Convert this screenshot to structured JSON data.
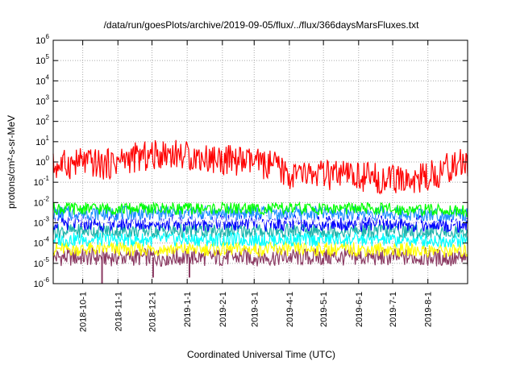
{
  "chart_data": {
    "type": "line",
    "title": "/data/run/goesPlots/archive/2019-09-05/flux/../flux/366daysMarsFluxes.txt",
    "xlabel": "Coordinated Universal Time (UTC)",
    "ylabel": "protons/cm²-s-sr-MeV",
    "y_scale": "log",
    "ylim": [
      1e-06,
      1000000.0
    ],
    "xlim": [
      "2018-09-05",
      "2019-09-05"
    ],
    "grid": true,
    "x_ticks": [
      {
        "date": "2018-10-01",
        "label": "2018-10-1"
      },
      {
        "date": "2018-11-01",
        "label": "2018-11-1"
      },
      {
        "date": "2018-12-01",
        "label": "2018-12-1"
      },
      {
        "date": "2019-01-01",
        "label": "2019-1-1"
      },
      {
        "date": "2019-02-01",
        "label": "2019-2-1"
      },
      {
        "date": "2019-03-01",
        "label": "2019-3-1"
      },
      {
        "date": "2019-04-01",
        "label": "2019-4-1"
      },
      {
        "date": "2019-05-01",
        "label": "2019-5-1"
      },
      {
        "date": "2019-06-01",
        "label": "2019-6-1"
      },
      {
        "date": "2019-07-01",
        "label": "2019-7-1"
      },
      {
        "date": "2019-08-01",
        "label": "2019-8-1"
      }
    ],
    "y_ticks": [
      {
        "value": 1e-06,
        "base": "10",
        "exp": "-6"
      },
      {
        "value": 1e-05,
        "base": "10",
        "exp": "-5"
      },
      {
        "value": 0.0001,
        "base": "10",
        "exp": "-4"
      },
      {
        "value": 0.001,
        "base": "10",
        "exp": "-3"
      },
      {
        "value": 0.01,
        "base": "10",
        "exp": "-2"
      },
      {
        "value": 0.1,
        "base": "10",
        "exp": "-1"
      },
      {
        "value": 1,
        "base": "10",
        "exp": "0"
      },
      {
        "value": 10,
        "base": "10",
        "exp": "1"
      },
      {
        "value": 100,
        "base": "10",
        "exp": "2"
      },
      {
        "value": 1000,
        "base": "10",
        "exp": "3"
      },
      {
        "value": 10000,
        "base": "10",
        "exp": "4"
      },
      {
        "value": 100000,
        "base": "10",
        "exp": "5"
      },
      {
        "value": 1000000,
        "base": "10",
        "exp": "6"
      }
    ],
    "series": [
      {
        "color": "#8b3a62",
        "x": [
          "2018-09-05",
          "2018-10-05",
          "2018-11-05",
          "2018-12-05",
          "2019-01-05",
          "2019-02-05",
          "2019-03-05",
          "2019-04-05",
          "2019-05-05",
          "2019-06-05",
          "2019-07-05",
          "2019-08-05",
          "2019-09-05"
        ],
        "y": [
          2e-05,
          2e-05,
          2e-05,
          2e-05,
          2e-05,
          2e-05,
          2e-05,
          2e-05,
          2e-05,
          2e-05,
          2e-05,
          2e-05,
          1.5e-05
        ],
        "spikes": [
          {
            "date": "2018-10-18",
            "value": 1e-06
          },
          {
            "date": "2018-12-02",
            "value": 2e-06
          },
          {
            "date": "2019-01-03",
            "value": 2e-06
          }
        ]
      },
      {
        "color": "#ffff00",
        "x": [
          "2018-09-05",
          "2018-12-05",
          "2019-03-05",
          "2019-06-05",
          "2019-09-05"
        ],
        "y": [
          5e-05,
          5e-05,
          5e-05,
          5e-05,
          4e-05
        ]
      },
      {
        "color": "#00ffff",
        "x": [
          "2018-09-05",
          "2018-12-05",
          "2019-03-05",
          "2019-06-05",
          "2019-09-05"
        ],
        "y": [
          0.00015,
          0.00015,
          0.00015,
          0.00015,
          0.00013
        ]
      },
      {
        "color": "#20b2aa",
        "x": [
          "2018-09-05",
          "2018-12-05",
          "2019-03-05",
          "2019-06-05",
          "2019-09-05"
        ],
        "y": [
          0.0004,
          0.0004,
          0.0004,
          0.0004,
          0.00035
        ]
      },
      {
        "color": "#0000ff",
        "x": [
          "2018-09-05",
          "2018-12-05",
          "2019-03-05",
          "2019-06-05",
          "2019-09-05"
        ],
        "y": [
          0.001,
          0.001,
          0.001,
          0.001,
          0.0008
        ]
      },
      {
        "color": "#ffffff",
        "x": [
          "2018-09-05",
          "2018-12-05",
          "2019-03-05",
          "2019-06-05",
          "2019-09-05"
        ],
        "y": [
          0.0015,
          0.0015,
          0.0015,
          0.0015,
          0.0013
        ]
      },
      {
        "color": "#1e90ff",
        "x": [
          "2018-09-05",
          "2018-12-05",
          "2019-03-05",
          "2019-06-05",
          "2019-09-05"
        ],
        "y": [
          0.003,
          0.003,
          0.003,
          0.003,
          0.0025
        ]
      },
      {
        "color": "#00ff00",
        "x": [
          "2018-09-05",
          "2018-12-05",
          "2019-03-05",
          "2019-06-05",
          "2019-09-05"
        ],
        "y": [
          0.005,
          0.005,
          0.005,
          0.005,
          0.004
        ]
      },
      {
        "color": "#ff0000",
        "x": [
          "2018-09-05",
          "2018-10-01",
          "2018-10-20",
          "2018-11-10",
          "2018-12-01",
          "2018-12-15",
          "2019-01-01",
          "2019-01-20",
          "2019-02-10",
          "2019-03-01",
          "2019-03-20",
          "2019-04-01",
          "2019-04-20",
          "2019-05-10",
          "2019-06-01",
          "2019-06-20",
          "2019-07-10",
          "2019-07-25",
          "2019-08-10",
          "2019-08-25",
          "2019-09-05"
        ],
        "y": [
          0.6,
          1.0,
          0.7,
          1.5,
          2.0,
          3.0,
          2.0,
          1.5,
          1.2,
          0.9,
          0.6,
          0.2,
          0.25,
          0.2,
          0.2,
          0.15,
          0.12,
          0.15,
          0.3,
          0.8,
          0.8
        ]
      }
    ]
  }
}
